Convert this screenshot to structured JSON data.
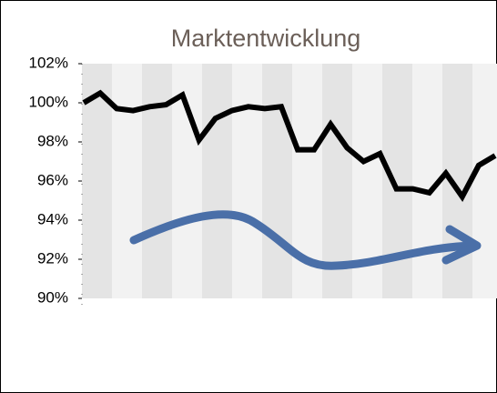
{
  "chart_data": {
    "type": "line",
    "title": "Marktentwicklung",
    "categories": [
      null,
      null,
      null,
      null,
      null,
      null,
      null,
      null,
      null,
      null,
      null,
      null,
      null,
      null,
      null,
      null,
      null,
      null,
      null,
      null,
      null,
      null,
      null,
      null,
      null,
      null
    ],
    "values": [
      100.0,
      100.5,
      99.7,
      99.6,
      99.8,
      99.9,
      100.4,
      98.1,
      99.2,
      99.6,
      99.8,
      99.7,
      99.8,
      97.6,
      97.6,
      98.9,
      97.7,
      97.0,
      97.4,
      95.6,
      95.6,
      95.4,
      96.4,
      95.2,
      96.8,
      97.3
    ],
    "color": "#000000",
    "ylim": [
      90,
      102
    ],
    "yticks": [
      {
        "value": 90,
        "label": "90%"
      },
      {
        "value": 92,
        "label": "92%"
      },
      {
        "value": 94,
        "label": "94%"
      },
      {
        "value": 96,
        "label": "96%"
      },
      {
        "value": 98,
        "label": "98%"
      },
      {
        "value": 100,
        "label": "100%"
      },
      {
        "value": 102,
        "label": "102%"
      }
    ]
  }
}
